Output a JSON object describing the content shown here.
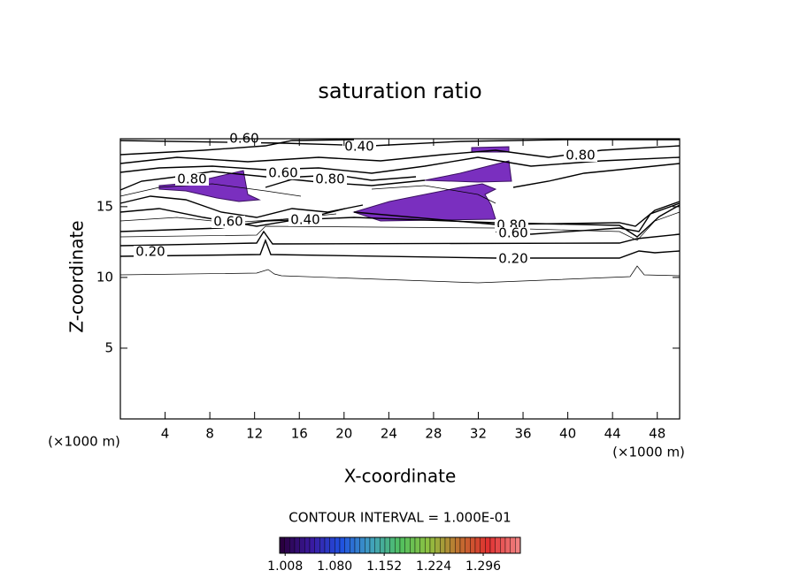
{
  "chart_data": {
    "type": "contour",
    "title": "saturation ratio",
    "x_label": "X-coordinate",
    "y_label": "Z-coordinate",
    "x_unit": "(×1000 m)",
    "y_unit": "(×1000 m)",
    "xlim": [
      0,
      50
    ],
    "ylim": [
      0,
      19.8
    ],
    "xticks": [
      4,
      8,
      12,
      16,
      20,
      24,
      28,
      32,
      36,
      40,
      44,
      48
    ],
    "yticks": [
      5,
      10,
      15
    ],
    "levels": [
      0.1,
      0.2,
      0.3,
      0.4,
      0.5,
      0.6,
      0.7,
      0.8,
      0.9
    ],
    "contour_labels": [
      {
        "value": 0.6,
        "label": "0.60"
      },
      {
        "value": 0.4,
        "label": "0.40"
      },
      {
        "value": 0.8,
        "label": "0.80"
      },
      {
        "value": 0.6,
        "label": "0.60"
      },
      {
        "value": 0.8,
        "label": "0.80"
      },
      {
        "value": 0.8,
        "label": "0.80"
      },
      {
        "value": 0.6,
        "label": "0.60"
      },
      {
        "value": 0.4,
        "label": "0.40"
      },
      {
        "value": 0.2,
        "label": "0.20"
      },
      {
        "value": 0.2,
        "label": "0.20"
      },
      {
        "value": 0.8,
        "label": "0.80"
      },
      {
        "value": 0.6,
        "label": "0.60"
      }
    ],
    "contour_interval_text": "CONTOUR INTERVAL = 1.000E-01",
    "line_color": "#000000",
    "fill_color": "#7a2fbf",
    "colorbar": {
      "clim": [
        1.0,
        1.35
      ],
      "ticks": [
        1.008,
        {
          "value": 1.08,
          "label": "1.080"
        },
        1.152,
        1.224,
        1.296
      ],
      "colors": [
        "#2a0040",
        "#3a1aa0",
        "#2050e0",
        "#40a0c0",
        "#50c060",
        "#90c040",
        "#c07030",
        "#e03030",
        "#f08080"
      ]
    }
  }
}
